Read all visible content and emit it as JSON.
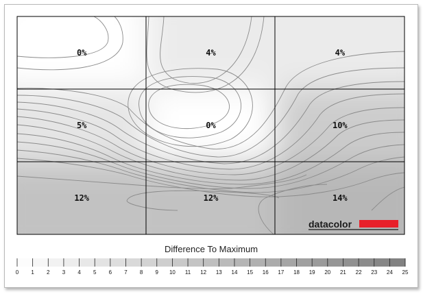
{
  "chart_data": {
    "type": "heatmap",
    "title": "",
    "rows": 3,
    "cols": 3,
    "cells": [
      [
        "0%",
        "4%",
        "4%"
      ],
      [
        "5%",
        "0%",
        "10%"
      ],
      [
        "12%",
        "12%",
        "14%"
      ]
    ],
    "values": [
      [
        0,
        4,
        4
      ],
      [
        5,
        0,
        10
      ],
      [
        12,
        12,
        14
      ]
    ],
    "contour_lines": true,
    "grid": true,
    "legend": {
      "title": "Difference To Maximum",
      "min": 0,
      "max": 25,
      "ticks": [
        "0",
        "1",
        "2",
        "3",
        "4",
        "5",
        "6",
        "7",
        "8",
        "9",
        "10",
        "11",
        "12",
        "13",
        "14",
        "15",
        "16",
        "17",
        "18",
        "19",
        "20",
        "21",
        "22",
        "23",
        "24",
        "25"
      ]
    },
    "brand": {
      "text": "datacolor",
      "accent_color": "#e8202a"
    },
    "colors": {
      "low": "#ffffff",
      "high": "#7f7f7f",
      "contour": "#8a8a8a",
      "grid": "#000000"
    }
  }
}
